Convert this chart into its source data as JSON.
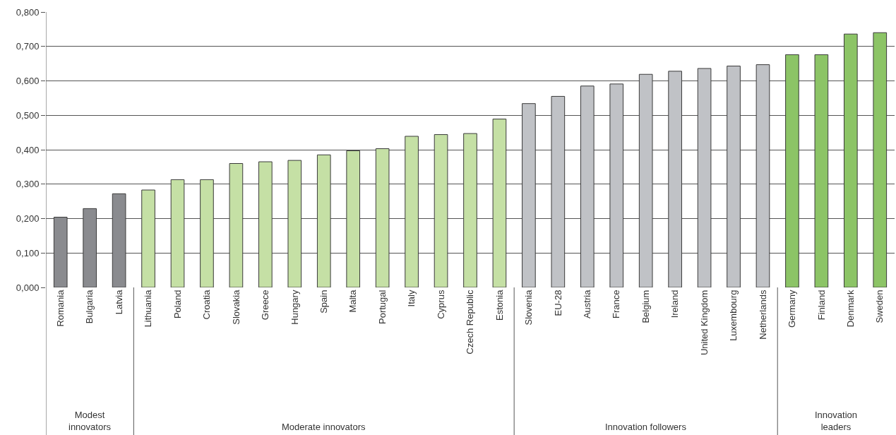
{
  "chart_data": {
    "type": "bar",
    "categories": [
      "Romania",
      "Bulgaria",
      "Latvia",
      "Lithuania",
      "Poland",
      "Croatia",
      "Slovakia",
      "Greece",
      "Hungary",
      "Spain",
      "Malta",
      "Portugal",
      "Italy",
      "Cyprus",
      "Czech Republic",
      "Estonia",
      "Slovenia",
      "EU-28",
      "Austria",
      "France",
      "Belgium",
      "Ireland",
      "United Kingdom",
      "Luxembourg",
      "Netherlands",
      "Germany",
      "Finland",
      "Denmark",
      "Sweden"
    ],
    "values": [
      0.204,
      0.229,
      0.272,
      0.283,
      0.313,
      0.313,
      0.36,
      0.365,
      0.369,
      0.385,
      0.397,
      0.403,
      0.439,
      0.444,
      0.447,
      0.489,
      0.534,
      0.555,
      0.585,
      0.591,
      0.619,
      0.628,
      0.636,
      0.643,
      0.647,
      0.676,
      0.676,
      0.736,
      0.74
    ],
    "colors": [
      "#8a8b8f",
      "#8a8b8f",
      "#8a8b8f",
      "#c5e0a5",
      "#c5e0a5",
      "#c5e0a5",
      "#c5e0a5",
      "#c5e0a5",
      "#c5e0a5",
      "#c5e0a5",
      "#c5e0a5",
      "#c5e0a5",
      "#c5e0a5",
      "#c5e0a5",
      "#c5e0a5",
      "#c5e0a5",
      "#c0c2c6",
      "#c0c2c6",
      "#c0c2c6",
      "#c0c2c6",
      "#c0c2c6",
      "#c0c2c6",
      "#c0c2c6",
      "#c0c2c6",
      "#c0c2c6",
      "#8cc466",
      "#8cc466",
      "#8cc466",
      "#8cc466"
    ],
    "annotations": [
      "Modest\ninnovators",
      "Moderate innovators",
      "Innovation followers",
      "Innovation\nleaders"
    ],
    "ylim": [
      0,
      0.8
    ],
    "yticks": [
      {
        "value": 0,
        "label": "0,000"
      },
      {
        "value": 0.1,
        "label": "0,100"
      },
      {
        "value": 0.2,
        "label": "0,200"
      },
      {
        "value": 0.3,
        "label": "0,300"
      },
      {
        "value": 0.4,
        "label": "0,400"
      },
      {
        "value": 0.5,
        "label": "0,500"
      },
      {
        "value": 0.6,
        "label": "0,600"
      },
      {
        "value": 0.7,
        "label": "0,700"
      },
      {
        "value": 0.8,
        "label": "0,800"
      }
    ],
    "grid": "y"
  }
}
